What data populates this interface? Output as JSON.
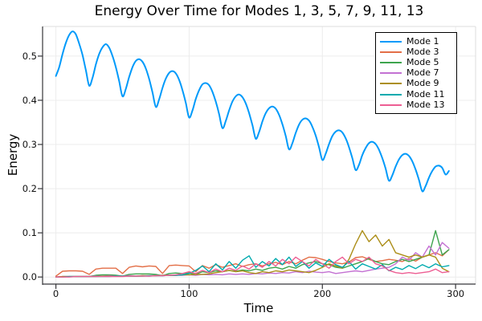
{
  "figure": {
    "background": "#ffffff"
  },
  "chart_data": {
    "type": "line",
    "title": "Energy Over Time for Modes 1, 3, 5, 7, 9, 11, 13",
    "xlabel": "Time",
    "ylabel": "Energy",
    "xlim": [
      -10,
      315
    ],
    "ylim": [
      -0.016,
      0.567
    ],
    "x_ticks": [
      0,
      100,
      200,
      300
    ],
    "x_tick_labels": [
      "0",
      "100",
      "200",
      "300"
    ],
    "y_ticks": [
      0.0,
      0.1,
      0.2,
      0.3,
      0.4,
      0.5
    ],
    "y_tick_labels": [
      "0.0",
      "0.1",
      "0.2",
      "0.3",
      "0.4",
      "0.5"
    ],
    "grid": true,
    "grid_color": "#ececec",
    "axis_color": "#36363a",
    "minor_frame_color": "#dedede",
    "legend_position": "top-right",
    "series": [
      {
        "name": "Mode 1",
        "color": "#009AFA",
        "lw": 2,
        "smooth": true,
        "x_start": 0,
        "x_step": 2.5,
        "values": [
          0.455,
          0.475,
          0.505,
          0.53,
          0.548,
          0.556,
          0.549,
          0.528,
          0.502,
          0.468,
          0.433,
          0.451,
          0.481,
          0.505,
          0.52,
          0.527,
          0.519,
          0.5,
          0.475,
          0.443,
          0.409,
          0.426,
          0.453,
          0.475,
          0.489,
          0.493,
          0.487,
          0.472,
          0.448,
          0.418,
          0.385,
          0.402,
          0.428,
          0.449,
          0.462,
          0.466,
          0.461,
          0.446,
          0.423,
          0.394,
          0.361,
          0.377,
          0.403,
          0.423,
          0.436,
          0.439,
          0.434,
          0.419,
          0.397,
          0.369,
          0.337,
          0.353,
          0.377,
          0.397,
          0.409,
          0.413,
          0.407,
          0.393,
          0.371,
          0.344,
          0.313,
          0.328,
          0.352,
          0.371,
          0.382,
          0.386,
          0.381,
          0.367,
          0.346,
          0.319,
          0.289,
          0.303,
          0.326,
          0.345,
          0.356,
          0.359,
          0.354,
          0.34,
          0.32,
          0.294,
          0.265,
          0.279,
          0.301,
          0.319,
          0.329,
          0.332,
          0.327,
          0.314,
          0.294,
          0.269,
          0.242,
          0.254,
          0.276,
          0.292,
          0.303,
          0.306,
          0.301,
          0.288,
          0.269,
          0.245,
          0.218,
          0.23,
          0.25,
          0.266,
          0.276,
          0.279,
          0.274,
          0.262,
          0.243,
          0.22,
          0.194,
          0.206,
          0.225,
          0.24,
          0.25,
          0.252,
          0.247,
          0.232,
          0.24
        ]
      },
      {
        "name": "Mode 3",
        "color": "#E36F47",
        "lw": 1.4,
        "smooth": false,
        "x_start": 0,
        "x_step": 5,
        "values": [
          0.002,
          0.013,
          0.014,
          0.014,
          0.013,
          0.006,
          0.018,
          0.02,
          0.02,
          0.02,
          0.008,
          0.022,
          0.025,
          0.023,
          0.025,
          0.024,
          0.008,
          0.026,
          0.027,
          0.026,
          0.025,
          0.012,
          0.026,
          0.02,
          0.028,
          0.022,
          0.026,
          0.03,
          0.024,
          0.028,
          0.03,
          0.025,
          0.03,
          0.033,
          0.028,
          0.035,
          0.03,
          0.038,
          0.045,
          0.044,
          0.04,
          0.035,
          0.032,
          0.03,
          0.034,
          0.044,
          0.046,
          0.04,
          0.035,
          0.037,
          0.04,
          0.038,
          0.035,
          0.042,
          0.036,
          0.045,
          0.05,
          0.055,
          0.048,
          0.062
        ]
      },
      {
        "name": "Mode 5",
        "color": "#3EA44E",
        "lw": 1.4,
        "smooth": false,
        "x_start": 0,
        "x_step": 5,
        "values": [
          0.0,
          0.001,
          0.001,
          0.001,
          0.001,
          0.001,
          0.004,
          0.005,
          0.005,
          0.004,
          0.002,
          0.006,
          0.007,
          0.007,
          0.007,
          0.006,
          0.003,
          0.008,
          0.009,
          0.008,
          0.009,
          0.006,
          0.012,
          0.01,
          0.014,
          0.012,
          0.015,
          0.013,
          0.016,
          0.014,
          0.018,
          0.015,
          0.02,
          0.022,
          0.018,
          0.024,
          0.02,
          0.028,
          0.032,
          0.035,
          0.03,
          0.028,
          0.022,
          0.02,
          0.025,
          0.03,
          0.035,
          0.042,
          0.035,
          0.03,
          0.028,
          0.035,
          0.04,
          0.035,
          0.04,
          0.045,
          0.05,
          0.105,
          0.05,
          0.062
        ]
      },
      {
        "name": "Mode 7",
        "color": "#C371D2",
        "lw": 1.4,
        "smooth": false,
        "x_start": 0,
        "x_step": 5,
        "values": [
          0.0,
          0.001,
          0.001,
          0.001,
          0.001,
          0.001,
          0.002,
          0.002,
          0.003,
          0.002,
          0.002,
          0.003,
          0.002,
          0.003,
          0.002,
          0.003,
          0.003,
          0.004,
          0.004,
          0.004,
          0.005,
          0.004,
          0.006,
          0.005,
          0.006,
          0.005,
          0.007,
          0.006,
          0.007,
          0.006,
          0.008,
          0.007,
          0.009,
          0.008,
          0.01,
          0.009,
          0.012,
          0.01,
          0.013,
          0.011,
          0.01,
          0.012,
          0.008,
          0.01,
          0.012,
          0.014,
          0.012,
          0.015,
          0.018,
          0.02,
          0.022,
          0.03,
          0.045,
          0.038,
          0.055,
          0.045,
          0.07,
          0.05,
          0.078,
          0.065
        ]
      },
      {
        "name": "Mode 9",
        "color": "#AC8E18",
        "lw": 1.4,
        "smooth": false,
        "x_start": 0,
        "x_step": 5,
        "values": [
          0.0,
          0.001,
          0.001,
          0.001,
          0.001,
          0.001,
          0.001,
          0.002,
          0.002,
          0.002,
          0.002,
          0.002,
          0.002,
          0.003,
          0.003,
          0.003,
          0.004,
          0.004,
          0.004,
          0.005,
          0.005,
          0.006,
          0.006,
          0.007,
          0.01,
          0.012,
          0.015,
          0.012,
          0.014,
          0.01,
          0.008,
          0.012,
          0.01,
          0.014,
          0.012,
          0.016,
          0.014,
          0.012,
          0.01,
          0.015,
          0.022,
          0.03,
          0.025,
          0.02,
          0.04,
          0.075,
          0.105,
          0.08,
          0.095,
          0.07,
          0.085,
          0.055,
          0.05,
          0.045,
          0.05,
          0.045,
          0.05,
          0.045,
          0.02,
          0.012
        ]
      },
      {
        "name": "Mode 11",
        "color": "#00AAAE",
        "lw": 1.4,
        "smooth": false,
        "x_start": 0,
        "x_step": 5,
        "values": [
          0.0,
          0.0,
          0.001,
          0.001,
          0.001,
          0.001,
          0.001,
          0.001,
          0.001,
          0.002,
          0.002,
          0.002,
          0.002,
          0.002,
          0.003,
          0.003,
          0.003,
          0.004,
          0.004,
          0.005,
          0.008,
          0.015,
          0.025,
          0.012,
          0.03,
          0.016,
          0.035,
          0.02,
          0.038,
          0.048,
          0.022,
          0.035,
          0.025,
          0.042,
          0.028,
          0.045,
          0.024,
          0.035,
          0.02,
          0.032,
          0.024,
          0.04,
          0.028,
          0.022,
          0.035,
          0.018,
          0.03,
          0.024,
          0.018,
          0.028,
          0.014,
          0.022,
          0.017,
          0.026,
          0.019,
          0.028,
          0.021,
          0.03,
          0.023,
          0.026
        ]
      },
      {
        "name": "Mode 13",
        "color": "#ED5E93",
        "lw": 1.4,
        "smooth": false,
        "x_start": 0,
        "x_step": 5,
        "values": [
          0.0,
          0.0,
          0.0,
          0.001,
          0.001,
          0.001,
          0.001,
          0.001,
          0.001,
          0.001,
          0.001,
          0.002,
          0.002,
          0.002,
          0.002,
          0.003,
          0.003,
          0.004,
          0.005,
          0.008,
          0.012,
          0.008,
          0.015,
          0.01,
          0.018,
          0.012,
          0.02,
          0.015,
          0.025,
          0.018,
          0.03,
          0.022,
          0.035,
          0.025,
          0.04,
          0.03,
          0.045,
          0.035,
          0.025,
          0.04,
          0.03,
          0.02,
          0.035,
          0.045,
          0.03,
          0.04,
          0.035,
          0.045,
          0.03,
          0.025,
          0.015,
          0.01,
          0.008,
          0.01,
          0.008,
          0.01,
          0.012,
          0.018,
          0.01,
          0.012
        ]
      }
    ]
  }
}
